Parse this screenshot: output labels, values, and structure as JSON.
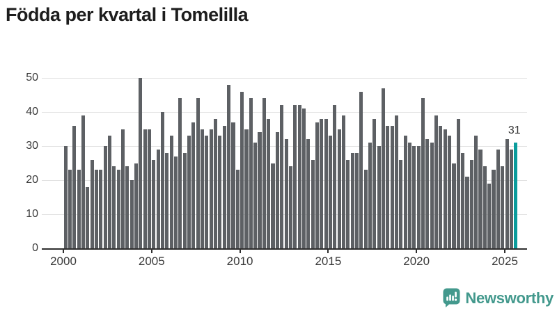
{
  "title": "Födda per kvartal i Tomelilla",
  "annotation": {
    "value": "31"
  },
  "logo": {
    "text": "Newsworthy",
    "icon": "bar-chart-speech-bubble-icon"
  },
  "colors": {
    "bar": "#5d6064",
    "highlight": "#0b9c9c",
    "brand": "#43998d",
    "gridline": "#e2e2e2",
    "axis": "#2f2f2f",
    "text": "#3a3a3a"
  },
  "chart_data": {
    "type": "bar",
    "title": "Födda per kvartal i Tomelilla",
    "x_unit": "quarter",
    "start": "2000-Q1",
    "end": "2025-Q3",
    "x_tick_labels": [
      "2000",
      "2005",
      "2010",
      "2015",
      "2020",
      "2025"
    ],
    "quarters_per_tick": 20,
    "y_ticks": [
      0,
      10,
      20,
      30,
      40,
      50
    ],
    "ylim": [
      0,
      50
    ],
    "grid": "horizontal",
    "legend": "none",
    "highlight_last": true,
    "last_value_label": "31",
    "values": [
      30,
      23,
      36,
      23,
      39,
      18,
      26,
      23,
      23,
      30,
      33,
      24,
      23,
      35,
      24,
      20,
      25,
      50,
      35,
      35,
      26,
      29,
      40,
      28,
      33,
      27,
      44,
      28,
      33,
      37,
      44,
      35,
      33,
      35,
      38,
      33,
      36,
      48,
      37,
      23,
      46,
      35,
      44,
      31,
      34,
      44,
      38,
      25,
      34,
      42,
      32,
      24,
      42,
      42,
      41,
      32,
      26,
      37,
      38,
      38,
      33,
      42,
      35,
      39,
      26,
      28,
      28,
      46,
      23,
      31,
      38,
      30,
      47,
      36,
      36,
      39,
      26,
      33,
      31,
      30,
      30,
      44,
      32,
      31,
      39,
      36,
      35,
      33,
      25,
      38,
      28,
      21,
      26,
      33,
      29,
      24,
      19,
      23,
      29,
      24,
      32,
      29,
      31
    ]
  }
}
